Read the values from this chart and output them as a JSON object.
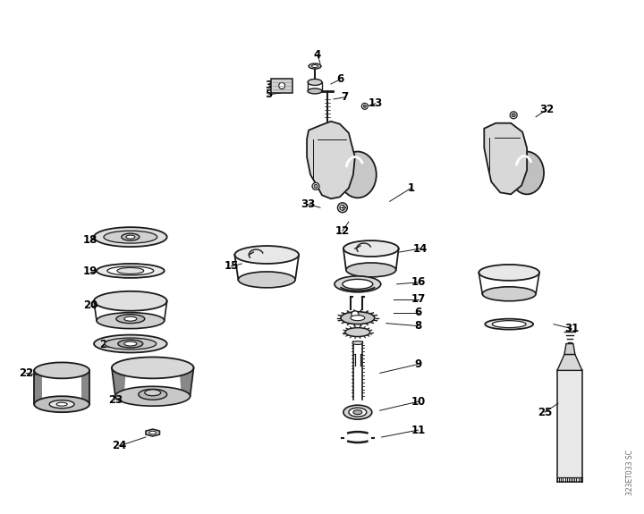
{
  "background_color": "#ffffff",
  "line_color": "#1a1a1a",
  "label_color": "#000000",
  "fig_width": 7.2,
  "fig_height": 5.75,
  "dpi": 100,
  "watermark_text": "323ET033 SC",
  "label_fontsize": 8.5
}
